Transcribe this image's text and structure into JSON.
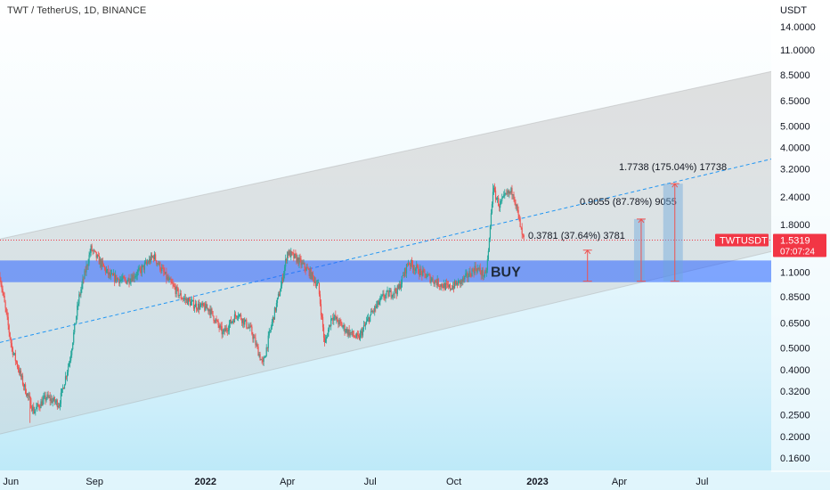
{
  "header": {
    "title": "TWT / TetherUS, 1D, BINANCE"
  },
  "axis": {
    "unit": "USDT"
  },
  "chart_data": {
    "type": "candlestick",
    "title": "TWT / TetherUS, 1D, BINANCE",
    "ylabel": "USDT",
    "yscale": "log",
    "ylim": [
      0.145,
      20
    ],
    "y_ticks": [
      "14.0000",
      "11.0000",
      "8.5000",
      "6.5000",
      "5.0000",
      "4.0000",
      "3.2000",
      "2.4000",
      "1.8000",
      "1.1000",
      "0.8500",
      "0.6500",
      "0.5000",
      "0.4000",
      "0.3200",
      "0.2500",
      "0.2000",
      "0.1600"
    ],
    "x_ticks": [
      "Jun",
      "Sep",
      "2022",
      "Apr",
      "Jul",
      "Oct",
      "2023",
      "Apr",
      "Jul"
    ],
    "price_path": [
      [
        "2021-05-20",
        1.05
      ],
      [
        "2021-06-02",
        0.5
      ],
      [
        "2021-06-15",
        0.34
      ],
      [
        "2021-06-26",
        0.26
      ],
      [
        "2021-07-10",
        0.3
      ],
      [
        "2021-07-24",
        0.28
      ],
      [
        "2021-08-05",
        0.45
      ],
      [
        "2021-08-15",
        0.85
      ],
      [
        "2021-08-28",
        1.4
      ],
      [
        "2021-09-05",
        1.25
      ],
      [
        "2021-09-18",
        1.05
      ],
      [
        "2021-10-05",
        1.0
      ],
      [
        "2021-10-20",
        1.1
      ],
      [
        "2021-11-05",
        1.3
      ],
      [
        "2021-11-20",
        1.02
      ],
      [
        "2021-12-05",
        0.85
      ],
      [
        "2021-12-20",
        0.78
      ],
      [
        "2022-01-05",
        0.75
      ],
      [
        "2022-01-20",
        0.58
      ],
      [
        "2022-02-05",
        0.72
      ],
      [
        "2022-02-20",
        0.6
      ],
      [
        "2022-03-05",
        0.42
      ],
      [
        "2022-03-15",
        0.65
      ],
      [
        "2022-03-25",
        0.95
      ],
      [
        "2022-04-01",
        1.35
      ],
      [
        "2022-04-12",
        1.25
      ],
      [
        "2022-04-25",
        1.1
      ],
      [
        "2022-05-05",
        0.95
      ],
      [
        "2022-05-12",
        0.52
      ],
      [
        "2022-05-20",
        0.7
      ],
      [
        "2022-06-05",
        0.6
      ],
      [
        "2022-06-18",
        0.55
      ],
      [
        "2022-07-01",
        0.7
      ],
      [
        "2022-07-15",
        0.85
      ],
      [
        "2022-08-01",
        0.92
      ],
      [
        "2022-08-12",
        1.22
      ],
      [
        "2022-08-25",
        1.1
      ],
      [
        "2022-09-10",
        1.0
      ],
      [
        "2022-09-25",
        0.93
      ],
      [
        "2022-10-10",
        1.0
      ],
      [
        "2022-10-25",
        1.15
      ],
      [
        "2022-11-05",
        1.05
      ],
      [
        "2022-11-08",
        1.35
      ],
      [
        "2022-11-13",
        2.6
      ],
      [
        "2022-11-20",
        2.2
      ],
      [
        "2022-11-28",
        2.45
      ],
      [
        "2022-12-05",
        2.55
      ],
      [
        "2022-12-10",
        2.05
      ],
      [
        "2022-12-15",
        1.6
      ],
      [
        "2022-12-17",
        1.5319
      ]
    ],
    "wick_extremes": {
      "high": "2022-11-13",
      "low": "2021-06-22"
    },
    "annotations": {
      "symbol_label": "TWTUSDT",
      "last_price": "1.5319",
      "countdown": "07:07:24",
      "buy_label": "BUY",
      "buy_zone": [
        0.99,
        1.24
      ],
      "current_price_line": 1.5319,
      "targets": [
        {
          "label": "0.3781 (37.64%) 3781",
          "from": 1.0,
          "to": 1.38,
          "date": "2023-02-25"
        },
        {
          "label": "0.9055 (87.78%) 9055",
          "from": 1.0,
          "to": 1.905,
          "date": "2023-04-25"
        },
        {
          "label": "1.7738 (175.04%) 17738",
          "from": 1.0,
          "to": 2.75,
          "date": "2023-06-01"
        }
      ],
      "channel_upper": [
        [
          "2021-05-20",
          1.55
        ],
        [
          "2023-09-15",
          8.8
        ]
      ],
      "channel_lower": [
        [
          "2021-05-20",
          0.205
        ],
        [
          "2023-09-15",
          1.36
        ]
      ],
      "dashed_line": [
        [
          "2021-05-20",
          0.53
        ],
        [
          "2023-09-15",
          3.55
        ]
      ]
    },
    "colors": {
      "up": "#26a69a",
      "down": "#ef5350",
      "buy_zone": "#2962ff",
      "target": "#ef5350",
      "target_box": "#6fa8dc",
      "channel": "#9e9e9e",
      "dashed": "#2196f3",
      "price_tag": "#f23645"
    },
    "grid": false,
    "legend": "none"
  }
}
